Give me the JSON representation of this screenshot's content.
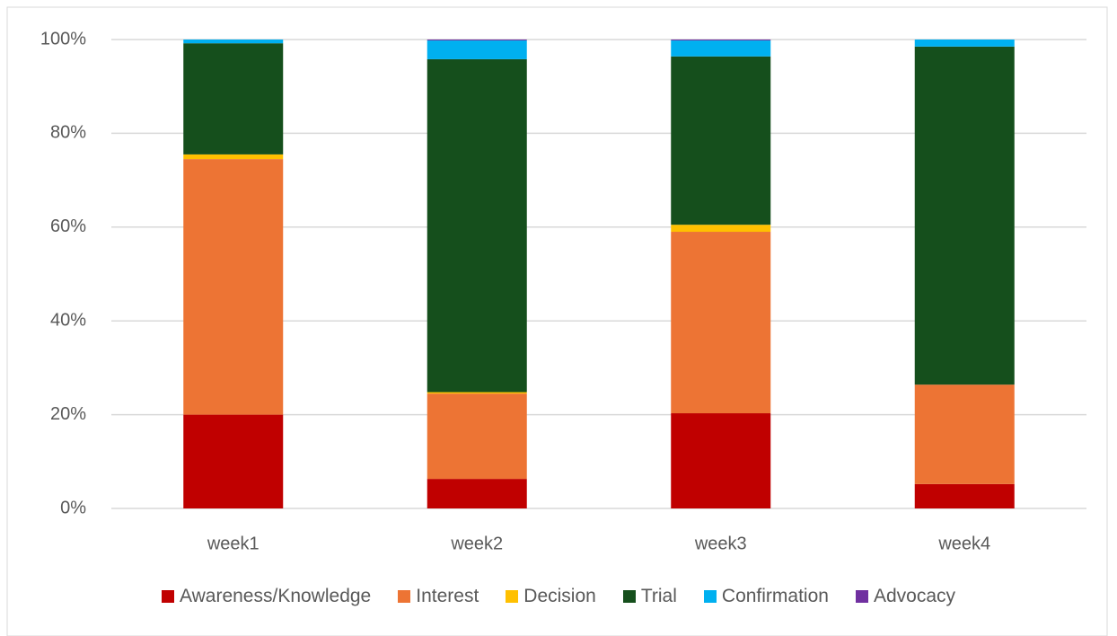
{
  "chart_data": {
    "type": "stacked_bar",
    "categories": [
      "week1",
      "week2",
      "week3",
      "week4"
    ],
    "series": [
      {
        "name": "Awareness/Knowledge",
        "color": "#c00000",
        "values": [
          20,
          6.3,
          20.3,
          5.2
        ]
      },
      {
        "name": "Interest",
        "color": "#ed7434",
        "values": [
          54.5,
          18.2,
          38.7,
          21.2
        ]
      },
      {
        "name": "Decision",
        "color": "#ffc000",
        "values": [
          1,
          0.3,
          1.5,
          0
        ]
      },
      {
        "name": "Trial",
        "color": "#154f1c",
        "values": [
          23.7,
          71,
          35.9,
          72.1
        ]
      },
      {
        "name": "Confirmation",
        "color": "#00b0f0",
        "values": [
          0.8,
          4,
          3.4,
          1.5
        ]
      },
      {
        "name": "Advocacy",
        "color": "#7030a0",
        "values": [
          0,
          0.2,
          0.2,
          0
        ]
      }
    ],
    "ylim": [
      0,
      100
    ],
    "yticks": [
      {
        "value": 0,
        "label": "0%"
      },
      {
        "value": 20,
        "label": "20%"
      },
      {
        "value": 40,
        "label": "40%"
      },
      {
        "value": 60,
        "label": "60%"
      },
      {
        "value": 80,
        "label": "80%"
      },
      {
        "value": 100,
        "label": "100%"
      }
    ],
    "grid": true,
    "legend": "bottom"
  }
}
